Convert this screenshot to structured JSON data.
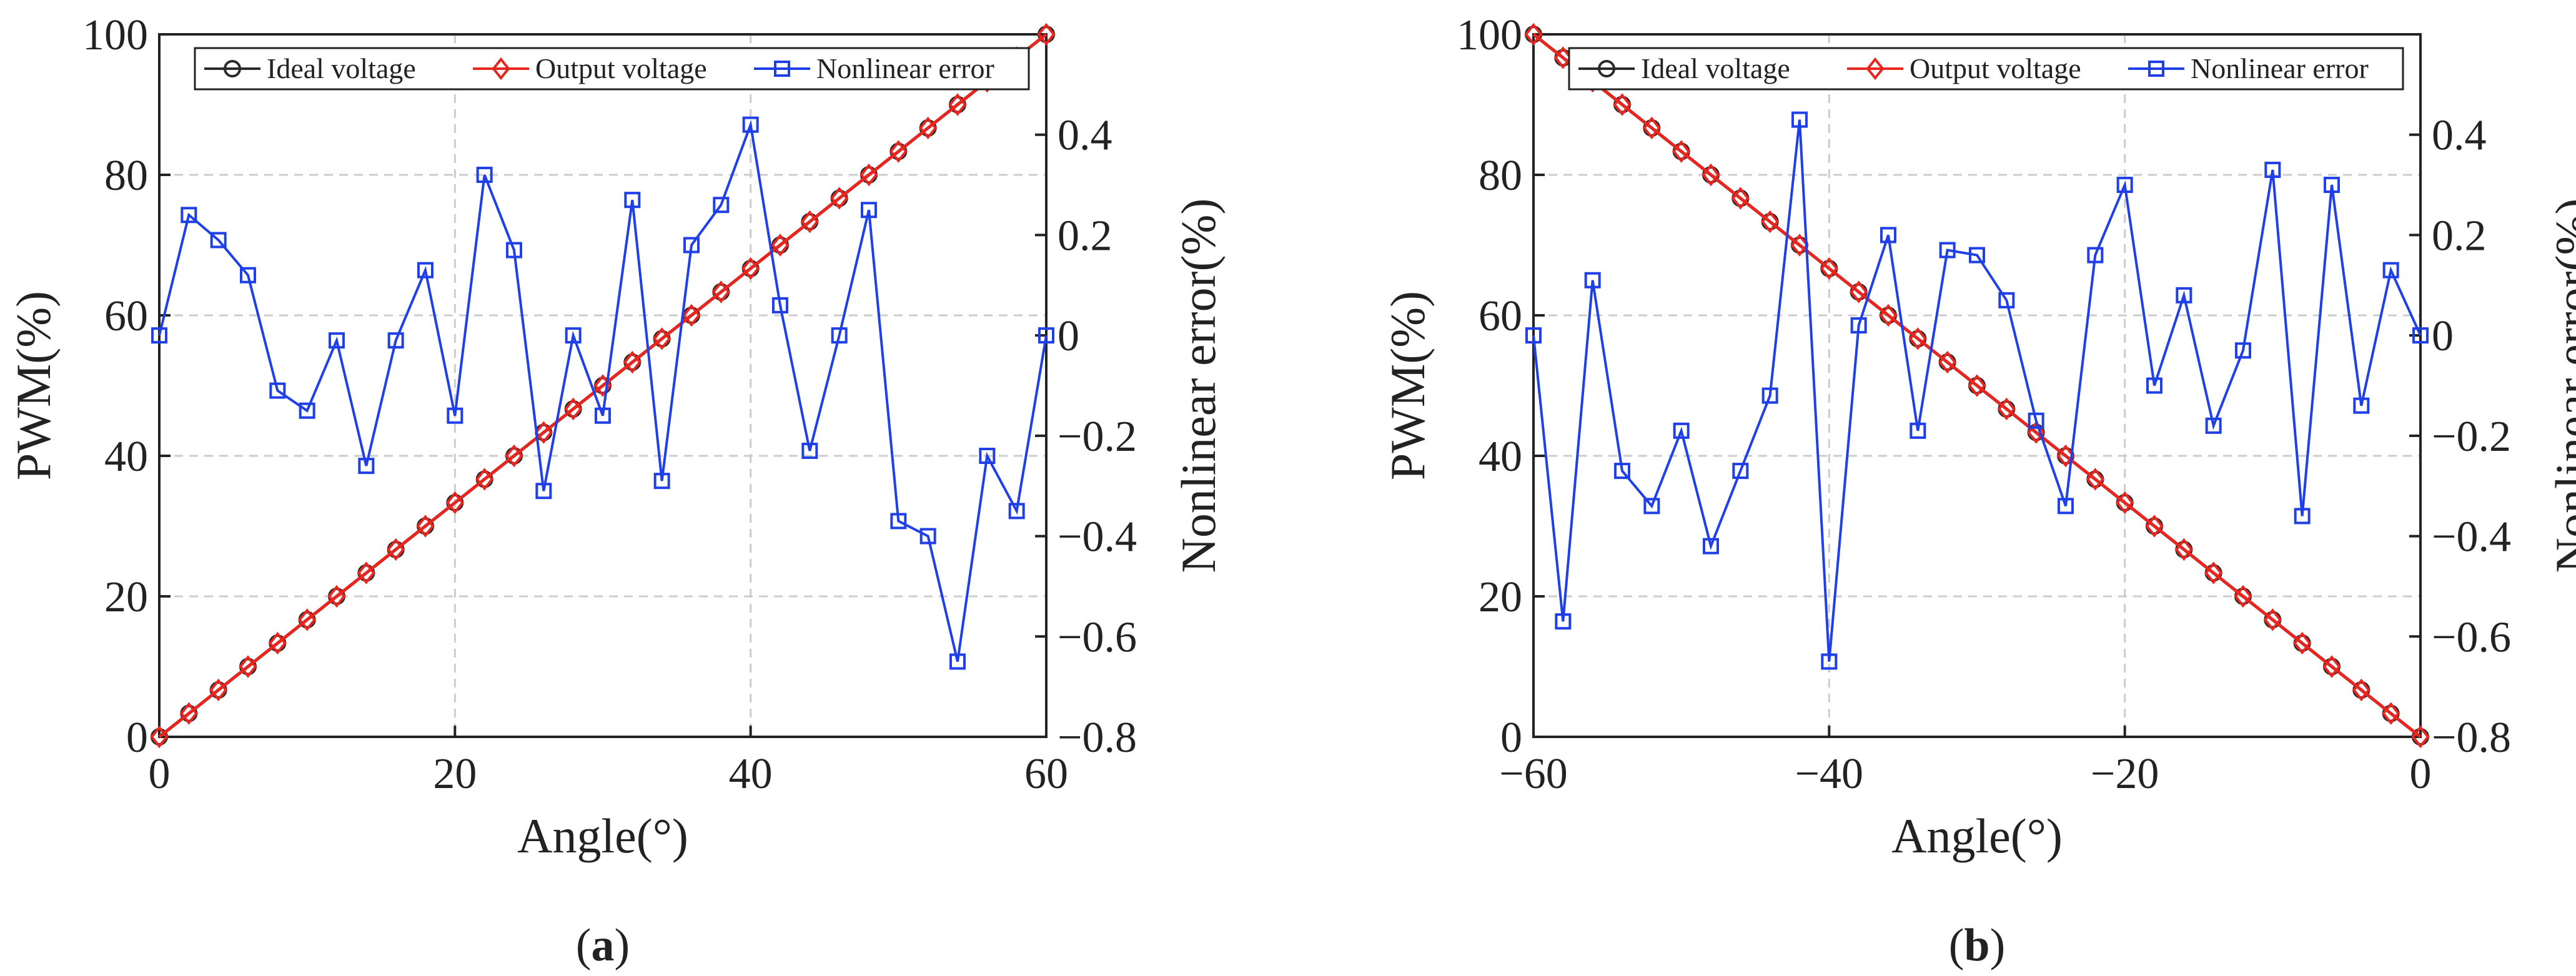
{
  "colors": {
    "ideal": "#2a2a2a",
    "output": "#e8251f",
    "error": "#1f3fe8",
    "grid": "#cccccc",
    "axis": "#222222"
  },
  "legend_labels": {
    "ideal": "Ideal voltage",
    "output": "Output voltage",
    "error": "Nonlinear error"
  },
  "chart_data": [
    {
      "type": "line",
      "panel_label": "(a)",
      "panel_letter": "a",
      "xlabel": "Angle(°)",
      "ylabel": "PWM(%)",
      "y2label": "Nonlinear error(%)",
      "xlim": [
        0,
        60
      ],
      "ylim": [
        0,
        100
      ],
      "y2lim": [
        -0.8,
        0.6
      ],
      "xticks": [
        0,
        20,
        40,
        60
      ],
      "yticks": [
        0,
        20,
        40,
        60,
        80,
        100
      ],
      "y2ticks": [
        -0.8,
        -0.6,
        -0.4,
        -0.2,
        0,
        0.2,
        0.4
      ],
      "legend_position": "top",
      "x": [
        0,
        2,
        4,
        6,
        8,
        10,
        12,
        14,
        16,
        18,
        20,
        22,
        24,
        26,
        28,
        30,
        32,
        34,
        36,
        38,
        40,
        42,
        44,
        46,
        48,
        50,
        52,
        54,
        56,
        58,
        60
      ],
      "series": [
        {
          "name": "Ideal voltage",
          "axis": "left",
          "marker": "circle",
          "values": [
            0,
            3.33,
            6.67,
            10,
            13.33,
            16.67,
            20,
            23.33,
            26.67,
            30,
            33.33,
            36.67,
            40,
            43.33,
            46.67,
            50,
            53.33,
            56.67,
            60,
            63.33,
            66.67,
            70,
            73.33,
            76.67,
            80,
            83.33,
            86.67,
            90,
            93.33,
            96.67,
            100
          ]
        },
        {
          "name": "Output voltage",
          "axis": "left",
          "marker": "diamond",
          "values": [
            0,
            3.33,
            6.67,
            10,
            13.33,
            16.67,
            20,
            23.33,
            26.67,
            30,
            33.33,
            36.67,
            40,
            43.33,
            46.67,
            50,
            53.33,
            56.67,
            60,
            63.33,
            66.67,
            70,
            73.33,
            76.67,
            80,
            83.33,
            86.67,
            90,
            93.33,
            96.67,
            100
          ]
        },
        {
          "name": "Nonlinear error",
          "axis": "right",
          "marker": "square",
          "values": [
            0,
            0.24,
            0.19,
            0.12,
            -0.11,
            -0.15,
            -0.01,
            -0.26,
            -0.01,
            0.13,
            -0.16,
            0.32,
            0.17,
            -0.31,
            0,
            -0.16,
            0.27,
            -0.29,
            0.18,
            0.26,
            0.42,
            0.06,
            -0.23,
            0,
            0.25,
            -0.37,
            -0.4,
            -0.65,
            -0.24,
            -0.35,
            0
          ]
        }
      ]
    },
    {
      "type": "line",
      "panel_label": "(b)",
      "panel_letter": "b",
      "xlabel": "Angle(°)",
      "ylabel": "PWM(%)",
      "y2label": "Nonlinear error(%)",
      "xlim": [
        -60,
        0
      ],
      "ylim": [
        0,
        100
      ],
      "y2lim": [
        -0.8,
        0.6
      ],
      "xticks": [
        -60,
        -40,
        -20,
        0
      ],
      "yticks": [
        0,
        20,
        40,
        60,
        80,
        100
      ],
      "y2ticks": [
        -0.8,
        -0.6,
        -0.4,
        -0.2,
        0,
        0.2,
        0.4
      ],
      "legend_position": "top",
      "x": [
        -60,
        -58,
        -56,
        -54,
        -52,
        -50,
        -48,
        -46,
        -44,
        -42,
        -40,
        -38,
        -36,
        -34,
        -32,
        -30,
        -28,
        -26,
        -24,
        -22,
        -20,
        -18,
        -16,
        -14,
        -12,
        -10,
        -8,
        -6,
        -4,
        -2,
        0
      ],
      "series": [
        {
          "name": "Ideal voltage",
          "axis": "left",
          "marker": "circle",
          "values": [
            100,
            96.67,
            93.33,
            90,
            86.67,
            83.33,
            80,
            76.67,
            73.33,
            70,
            66.67,
            63.33,
            60,
            56.67,
            53.33,
            50,
            46.67,
            43.33,
            40,
            36.67,
            33.33,
            30,
            26.67,
            23.33,
            20,
            16.67,
            13.33,
            10,
            6.67,
            3.33,
            0
          ]
        },
        {
          "name": "Output voltage",
          "axis": "left",
          "marker": "diamond",
          "values": [
            100,
            96.67,
            93.33,
            90,
            86.67,
            83.33,
            80,
            76.67,
            73.33,
            70,
            66.67,
            63.33,
            60,
            56.67,
            53.33,
            50,
            46.67,
            43.33,
            40,
            36.67,
            33.33,
            30,
            26.67,
            23.33,
            20,
            16.67,
            13.33,
            10,
            6.67,
            3.33,
            0
          ]
        },
        {
          "name": "Nonlinear error",
          "axis": "right",
          "marker": "square",
          "values": [
            0,
            -0.57,
            0.11,
            -0.27,
            -0.34,
            -0.19,
            -0.42,
            -0.27,
            -0.12,
            0.43,
            -0.65,
            0.02,
            0.2,
            -0.19,
            0.17,
            0.16,
            0.07,
            -0.17,
            -0.34,
            0.16,
            0.3,
            -0.1,
            0.08,
            -0.18,
            -0.03,
            0.33,
            -0.36,
            0.3,
            -0.14,
            0.13,
            0
          ]
        }
      ]
    }
  ]
}
